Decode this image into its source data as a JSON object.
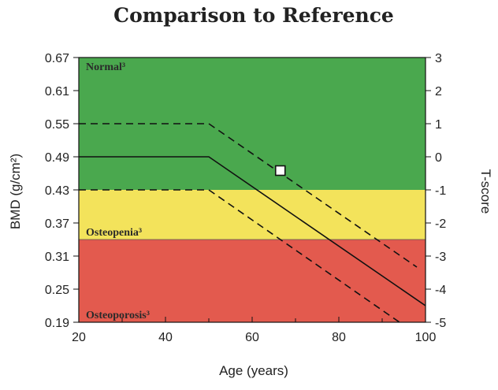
{
  "chart_data": {
    "type": "line",
    "title": "Comparison to Reference",
    "xlabel": "Age (years)",
    "ylabel": "BMD (g/cm²)",
    "y2label": "T-score",
    "xlim": [
      20,
      100
    ],
    "ylim": [
      0.19,
      0.67
    ],
    "y2lim": [
      -5,
      3
    ],
    "x_ticks": [
      20,
      40,
      60,
      80,
      100
    ],
    "y_ticks": [
      "0.19",
      "0.25",
      "0.31",
      "0.37",
      "0.43",
      "0.49",
      "0.55",
      "0.61",
      "0.67"
    ],
    "y2_ticks": [
      "-5",
      "-4",
      "-3",
      "-2",
      "-1",
      "0",
      "1",
      "2",
      "3"
    ],
    "zones": [
      {
        "label": "Normal³",
        "from": 0.43,
        "to": 0.67,
        "color": "#4aa84e"
      },
      {
        "label": "Osteopenia³",
        "from": 0.34,
        "to": 0.43,
        "color": "#f3e35b"
      },
      {
        "label": "Osteoporosis³",
        "from": 0.19,
        "to": 0.34,
        "color": "#e35a4e"
      }
    ],
    "series": [
      {
        "style": "solid",
        "points": [
          [
            20,
            0.49
          ],
          [
            50,
            0.49
          ],
          [
            100,
            0.22
          ]
        ]
      },
      {
        "style": "dashed",
        "points": [
          [
            20,
            0.55
          ],
          [
            50,
            0.55
          ],
          [
            98,
            0.29
          ]
        ]
      },
      {
        "style": "dashed",
        "points": [
          [
            20,
            0.43
          ],
          [
            50,
            0.43
          ],
          [
            94,
            0.19
          ]
        ]
      }
    ],
    "marker": {
      "x": 66.5,
      "y": 0.465
    },
    "grid": false
  }
}
